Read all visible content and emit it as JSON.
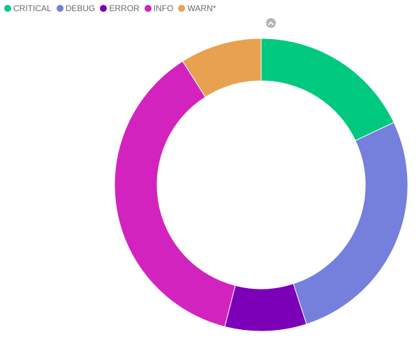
{
  "legend": {
    "items": [
      {
        "label": "CRITICAL",
        "color": "#00c97f"
      },
      {
        "label": "DEBUG",
        "color": "#7480dc"
      },
      {
        "label": "ERROR",
        "color": "#7c00b8"
      },
      {
        "label": "INFO",
        "color": "#d323bf"
      },
      {
        "label": "WARN*",
        "color": "#e8a24f"
      }
    ]
  },
  "controls": {
    "collapse_icon": "chevron-up-icon"
  },
  "chart_data": {
    "type": "pie",
    "variant": "donut",
    "categories": [
      "CRITICAL",
      "DEBUG",
      "ERROR",
      "INFO",
      "WARN*"
    ],
    "values": [
      18,
      27,
      9,
      37,
      9
    ],
    "colors": [
      "#00c97f",
      "#7480dc",
      "#7c00b8",
      "#d323bf",
      "#e8a24f"
    ],
    "start_angle_deg": 0,
    "direction": "clockwise",
    "legend_position": "top-left",
    "title": ""
  }
}
